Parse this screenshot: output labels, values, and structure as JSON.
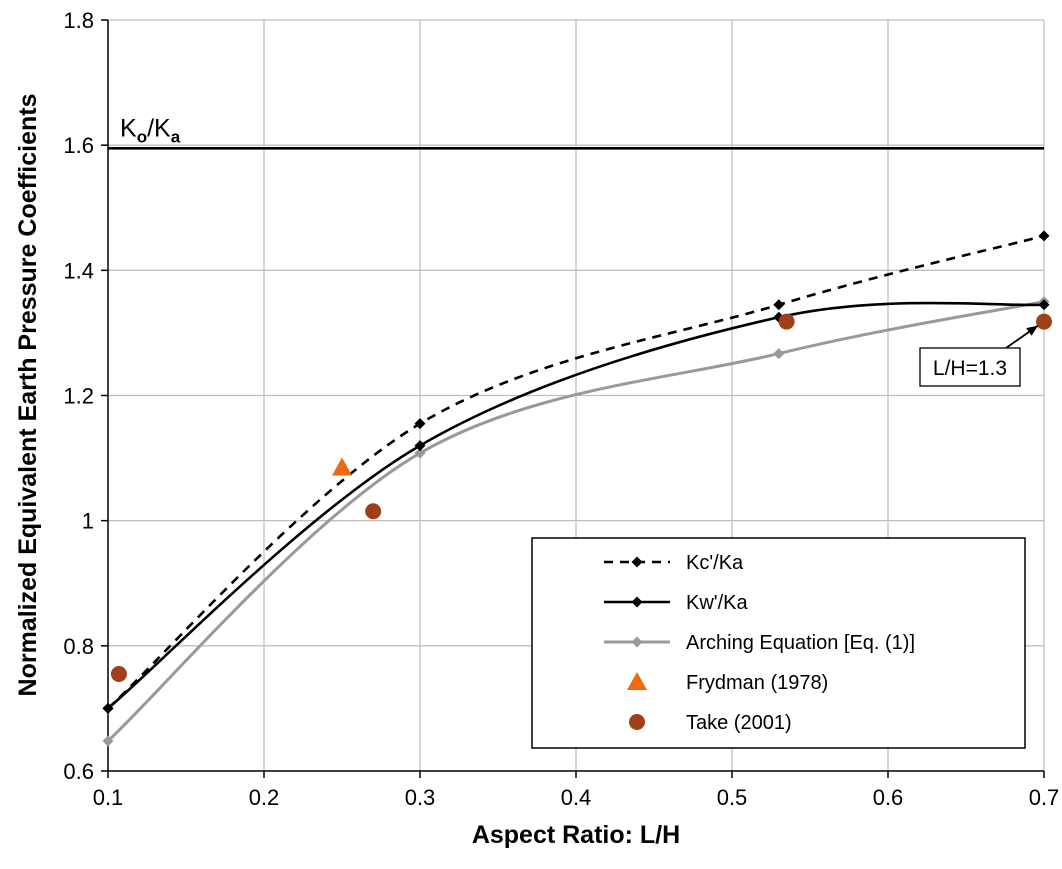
{
  "chart_data": {
    "type": "line",
    "title": "",
    "xlabel": "Aspect Ratio: L/H",
    "ylabel": "Normalized Equivalent Earth Pressure Coefficients",
    "xlim": [
      0.1,
      0.7
    ],
    "ylim": [
      0.6,
      1.8
    ],
    "xticks": [
      "0.1",
      "0.2",
      "0.3",
      "0.4",
      "0.5",
      "0.6",
      "0.7"
    ],
    "yticks": [
      "0.6",
      "0.8",
      "1",
      "1.2",
      "1.4",
      "1.6",
      "1.8"
    ],
    "grid": true,
    "legend_position": "bottom-right",
    "reference_line": {
      "y": 1.595,
      "label_main": "K",
      "label_sub1": "o",
      "label_mid": "/K",
      "label_sub2": "a"
    },
    "series": [
      {
        "name": "Kc'/Ka",
        "style": "dashed",
        "color": "#000000",
        "marker": "diamond",
        "smooth": true,
        "points": [
          [
            0.1,
            0.7
          ],
          [
            0.3,
            1.155
          ],
          [
            0.53,
            1.345
          ],
          [
            0.7,
            1.455
          ]
        ]
      },
      {
        "name": "Kw'/Ka",
        "style": "solid",
        "color": "#000000",
        "marker": "diamond",
        "smooth": true,
        "points": [
          [
            0.1,
            0.7
          ],
          [
            0.3,
            1.12
          ],
          [
            0.53,
            1.325
          ],
          [
            0.7,
            1.345
          ]
        ]
      },
      {
        "name": "Arching Equation [Eq. (1)]",
        "style": "solid",
        "color": "#999999",
        "marker": "diamond",
        "smooth": true,
        "points": [
          [
            0.1,
            0.648
          ],
          [
            0.3,
            1.108
          ],
          [
            0.53,
            1.267
          ],
          [
            0.7,
            1.35
          ]
        ]
      },
      {
        "name": "Frydman (1978)",
        "style": "none",
        "color": "#ee6a10",
        "marker": "triangle",
        "points": [
          [
            0.25,
            1.085
          ]
        ]
      },
      {
        "name": "Take (2001)",
        "style": "none",
        "color": "#a0401a",
        "marker": "circle",
        "points": [
          [
            0.107,
            0.755
          ],
          [
            0.27,
            1.015
          ],
          [
            0.535,
            1.318
          ],
          [
            0.7,
            1.318
          ]
        ]
      }
    ],
    "annotations": [
      {
        "text": "L/H=1.3",
        "target": [
          0.7,
          1.318
        ]
      }
    ]
  }
}
